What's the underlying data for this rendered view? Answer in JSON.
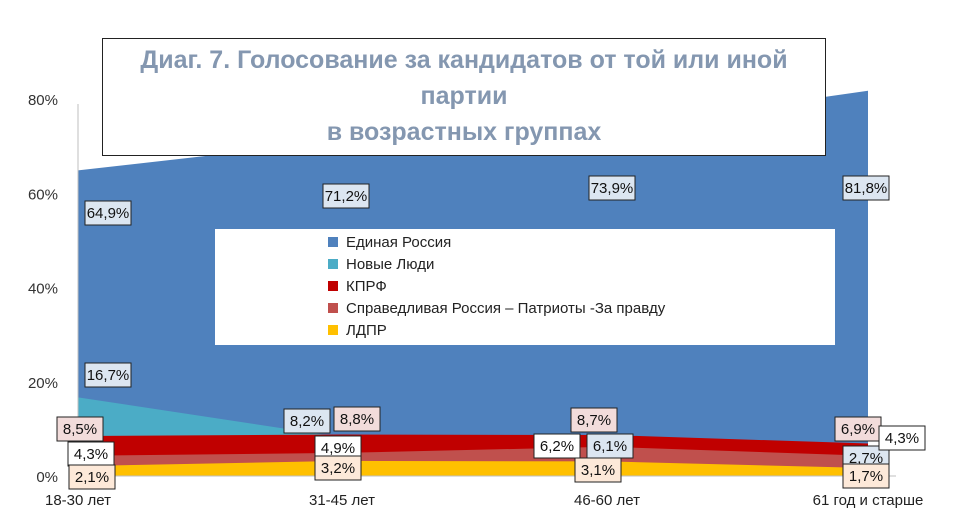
{
  "colors": {
    "united_russia": "#4f81bd",
    "new_people": "#4bacc6",
    "kprf": "#c00000",
    "fair_russia": "#c0504d",
    "ldpr": "#ffc000"
  },
  "chart_data": {
    "type": "area",
    "title": [
      "Диаг. 7. Голосование за кандидатов от той или иной",
      "партии",
      "в возрастных группах"
    ],
    "categories": [
      "18-30 лет",
      "31-45 лет",
      "46-60 лет",
      "61 год и старше"
    ],
    "y_ticks": [
      "0%",
      "20%",
      "40%",
      "60%",
      "80%"
    ],
    "ylim": [
      0,
      80
    ],
    "grid": false,
    "legend_position": "center",
    "series": [
      {
        "name": "Единая Россия",
        "key": "united_russia",
        "values": [
          64.9,
          71.2,
          73.9,
          81.8
        ],
        "labels": [
          "64,9%",
          "71,2%",
          "73,9%",
          "81,8%"
        ]
      },
      {
        "name": "Новые Люди",
        "key": "new_people",
        "values": [
          16.7,
          8.2,
          6.1,
          2.7
        ],
        "labels": [
          "16,7%",
          "8,2%",
          "6,1%",
          "2,7%"
        ]
      },
      {
        "name": "КПРФ",
        "key": "kprf",
        "values": [
          8.5,
          8.8,
          8.7,
          6.9
        ],
        "labels": [
          "8,5%",
          "8,8%",
          "8,7%",
          "6,9%"
        ]
      },
      {
        "name": "Справедливая Россия – Патриоты -За правду",
        "key": "fair_russia",
        "values": [
          4.3,
          4.9,
          6.2,
          4.3
        ],
        "labels": [
          "4,3%",
          "4,9%",
          "6,2%",
          "4,3%"
        ]
      },
      {
        "name": "ЛДПР",
        "key": "ldpr",
        "values": [
          2.1,
          3.2,
          3.1,
          1.7
        ],
        "labels": [
          "2,1%",
          "3,2%",
          "3,1%",
          "1,7%"
        ]
      }
    ]
  }
}
